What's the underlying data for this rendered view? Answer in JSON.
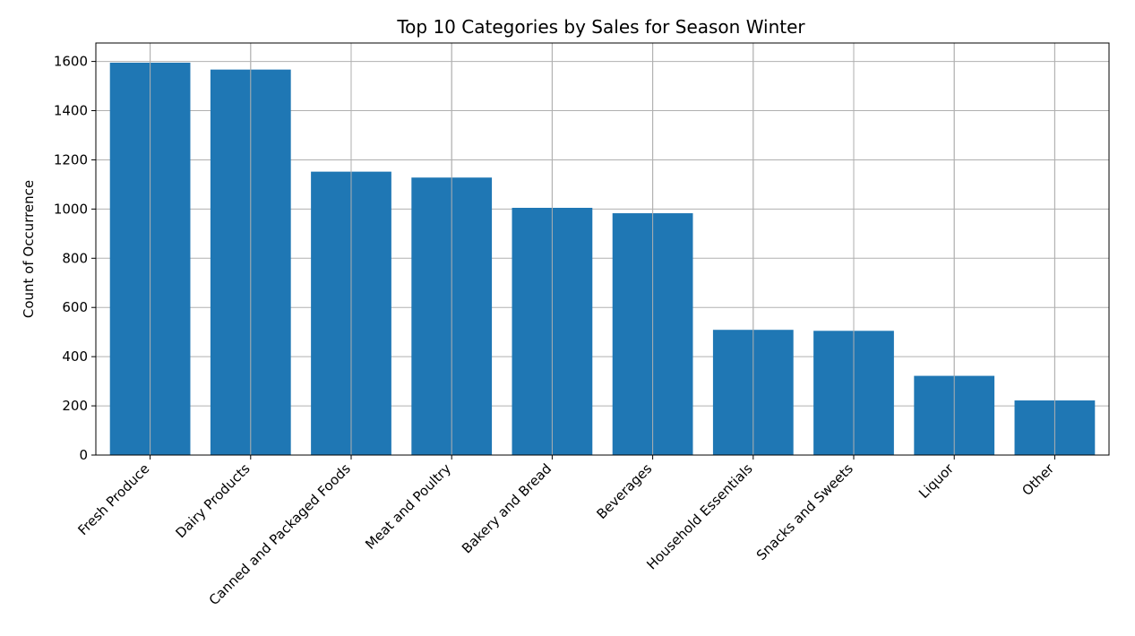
{
  "chart_data": {
    "type": "bar",
    "title": "Top 10 Categories by Sales for Season Winter",
    "xlabel": "",
    "ylabel": "Count of Occurrence",
    "categories": [
      "Fresh Produce",
      "Dairy Products",
      "Canned and Packaged Foods",
      "Meat and Poultry",
      "Bakery and Bread",
      "Beverages",
      "Household Essentials",
      "Snacks and Sweets",
      "Liquor",
      "Other"
    ],
    "values": [
      1595,
      1567,
      1152,
      1128,
      1005,
      983,
      509,
      505,
      322,
      222
    ],
    "ylim": [
      0,
      1675
    ],
    "yticks": [
      0,
      200,
      400,
      600,
      800,
      1000,
      1200,
      1400,
      1600
    ],
    "grid": true,
    "bar_color": "#1f77b4"
  }
}
